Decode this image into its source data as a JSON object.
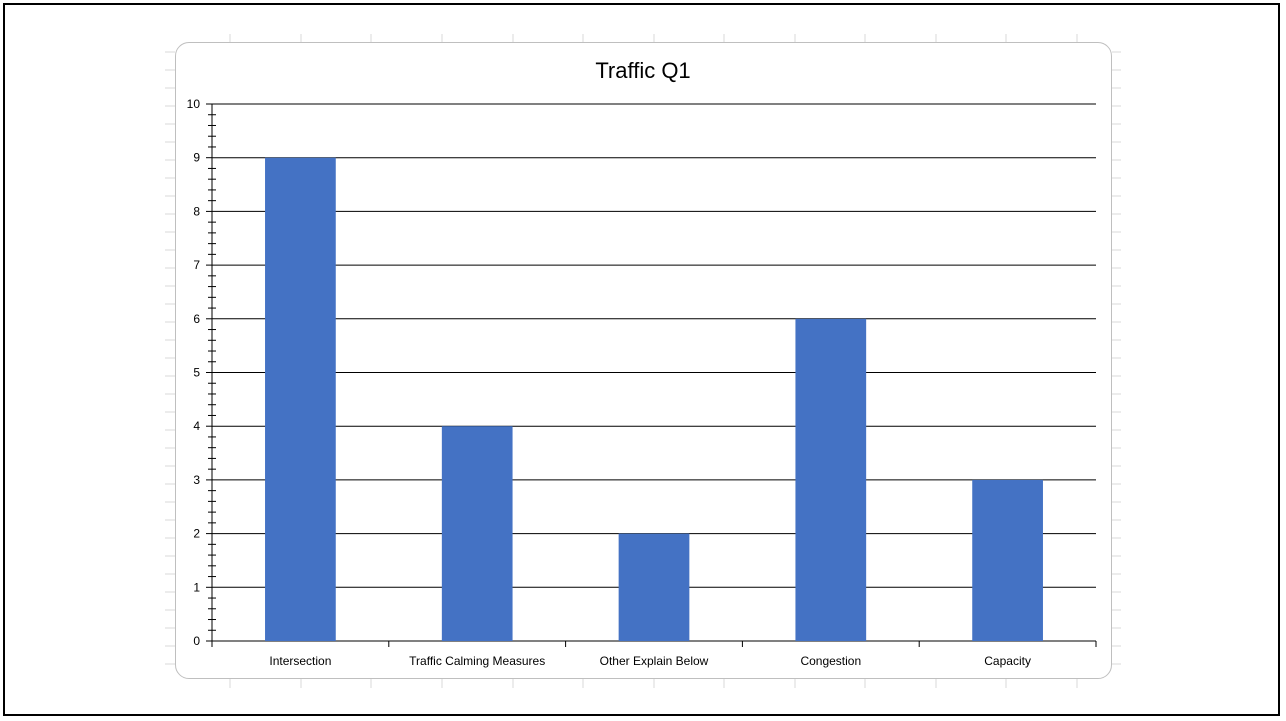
{
  "colors": {
    "bar": "#4472C4",
    "gridline": "#000000",
    "chart_border": "#bfbfbf",
    "sheet_line": "#d9d9d9"
  },
  "chart_data": {
    "type": "bar",
    "title": "Traffic Q1",
    "categories": [
      "Intersection",
      "Traffic Calming Measures",
      "Other Explain Below",
      "Congestion",
      "Capacity"
    ],
    "values": [
      9,
      4,
      2,
      6,
      3
    ],
    "xlabel": "",
    "ylabel": "",
    "ylim": [
      0,
      10
    ],
    "yticks": [
      "0",
      "1",
      "2",
      "3",
      "4",
      "5",
      "6",
      "7",
      "8",
      "9",
      "10"
    ],
    "grid": true,
    "legend": "none"
  }
}
